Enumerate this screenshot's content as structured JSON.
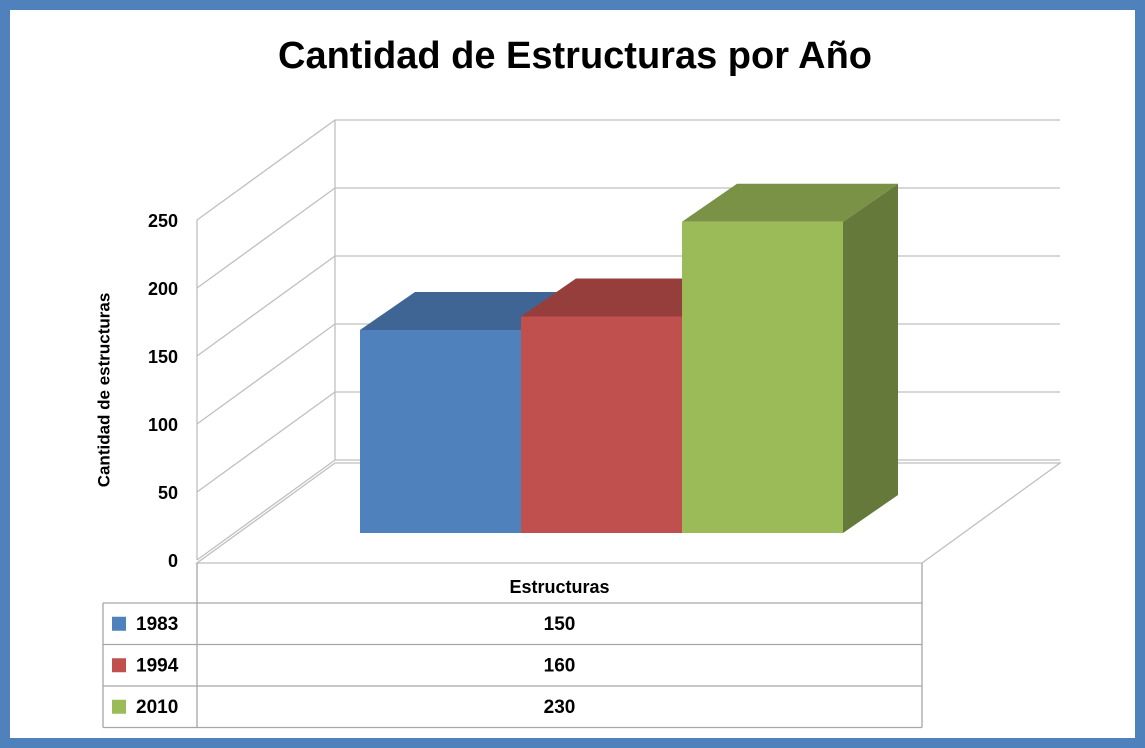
{
  "chart_data": {
    "type": "bar3d",
    "title": "Cantidad de Estructuras por Año",
    "y_label": "Cantidad de estructuras",
    "categories": [
      "Estructuras"
    ],
    "series": [
      {
        "name": "1983",
        "color": "#4f81bd",
        "values": [
          150
        ]
      },
      {
        "name": "1994",
        "color": "#c0504d",
        "values": [
          160
        ]
      },
      {
        "name": "2010",
        "color": "#9bbb59",
        "values": [
          230
        ]
      }
    ],
    "ylim": [
      0,
      250
    ],
    "yticks": [
      0,
      50,
      100,
      150,
      200,
      250
    ],
    "grid": true,
    "data_table": true
  }
}
